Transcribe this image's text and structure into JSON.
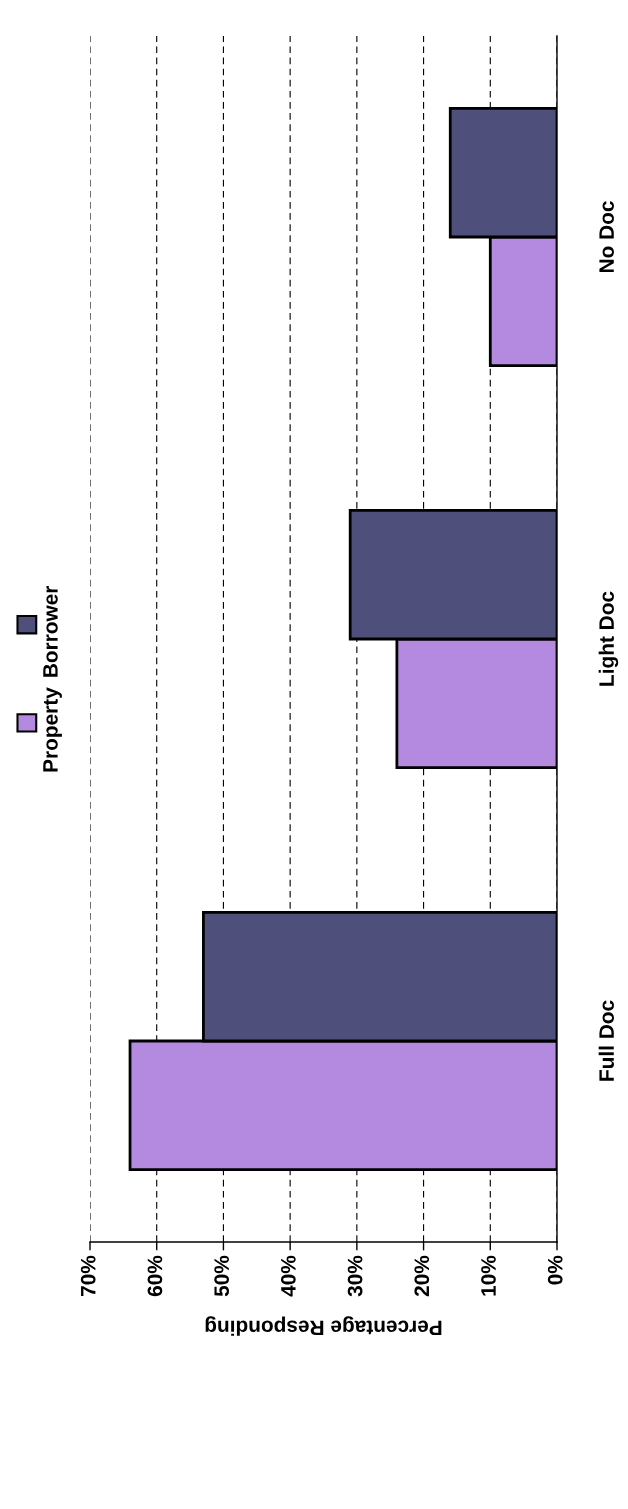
{
  "chart_data": {
    "type": "bar",
    "orientation": "horizontal",
    "xlabel": "Percentage Responding",
    "categories": [
      "No Doc",
      "Light Doc",
      "Full Doc"
    ],
    "series": [
      {
        "name": "Property",
        "color": "#b48ae0",
        "values": [
          10,
          24,
          64
        ]
      },
      {
        "name": "Borrower",
        "color": "#4f4f7c",
        "values": [
          16,
          31,
          53
        ]
      }
    ],
    "xlim": [
      70,
      0
    ],
    "xticks": [
      {
        "value": 70,
        "label": "70%"
      },
      {
        "value": 60,
        "label": "60%"
      },
      {
        "value": 50,
        "label": "50%"
      },
      {
        "value": 40,
        "label": "40%"
      },
      {
        "value": 30,
        "label": "30%"
      },
      {
        "value": 20,
        "label": "20%"
      },
      {
        "value": 10,
        "label": "10%"
      },
      {
        "value": 0,
        "label": "0%"
      }
    ],
    "grid": "x",
    "legend": "left"
  }
}
